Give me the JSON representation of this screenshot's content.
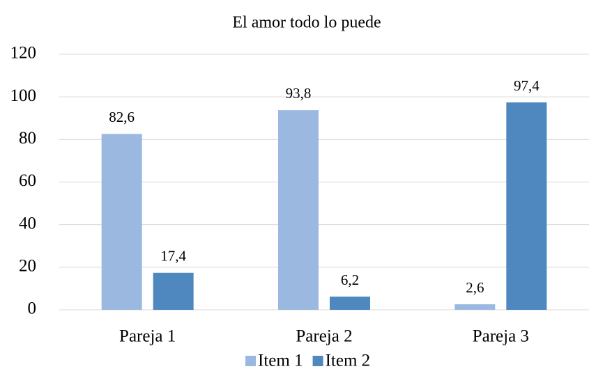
{
  "chart_data": {
    "type": "bar",
    "title": "El amor todo lo puede",
    "categories": [
      "Pareja 1",
      "Pareja 2",
      "Pareja 3"
    ],
    "series": [
      {
        "name": "Item 1",
        "color": "#9bb9e0",
        "values": [
          82.6,
          93.8,
          2.6
        ],
        "value_labels": [
          "82,6",
          "93,8",
          "2,6"
        ]
      },
      {
        "name": "Item 2",
        "color": "#4f88bf",
        "values": [
          17.4,
          6.2,
          97.4
        ],
        "value_labels": [
          "17,4",
          "6,2",
          "97,4"
        ]
      }
    ],
    "ylim": [
      0,
      120
    ],
    "yticks": [
      0,
      20,
      40,
      60,
      80,
      100,
      120
    ],
    "grid": true,
    "legend": "bottom"
  }
}
